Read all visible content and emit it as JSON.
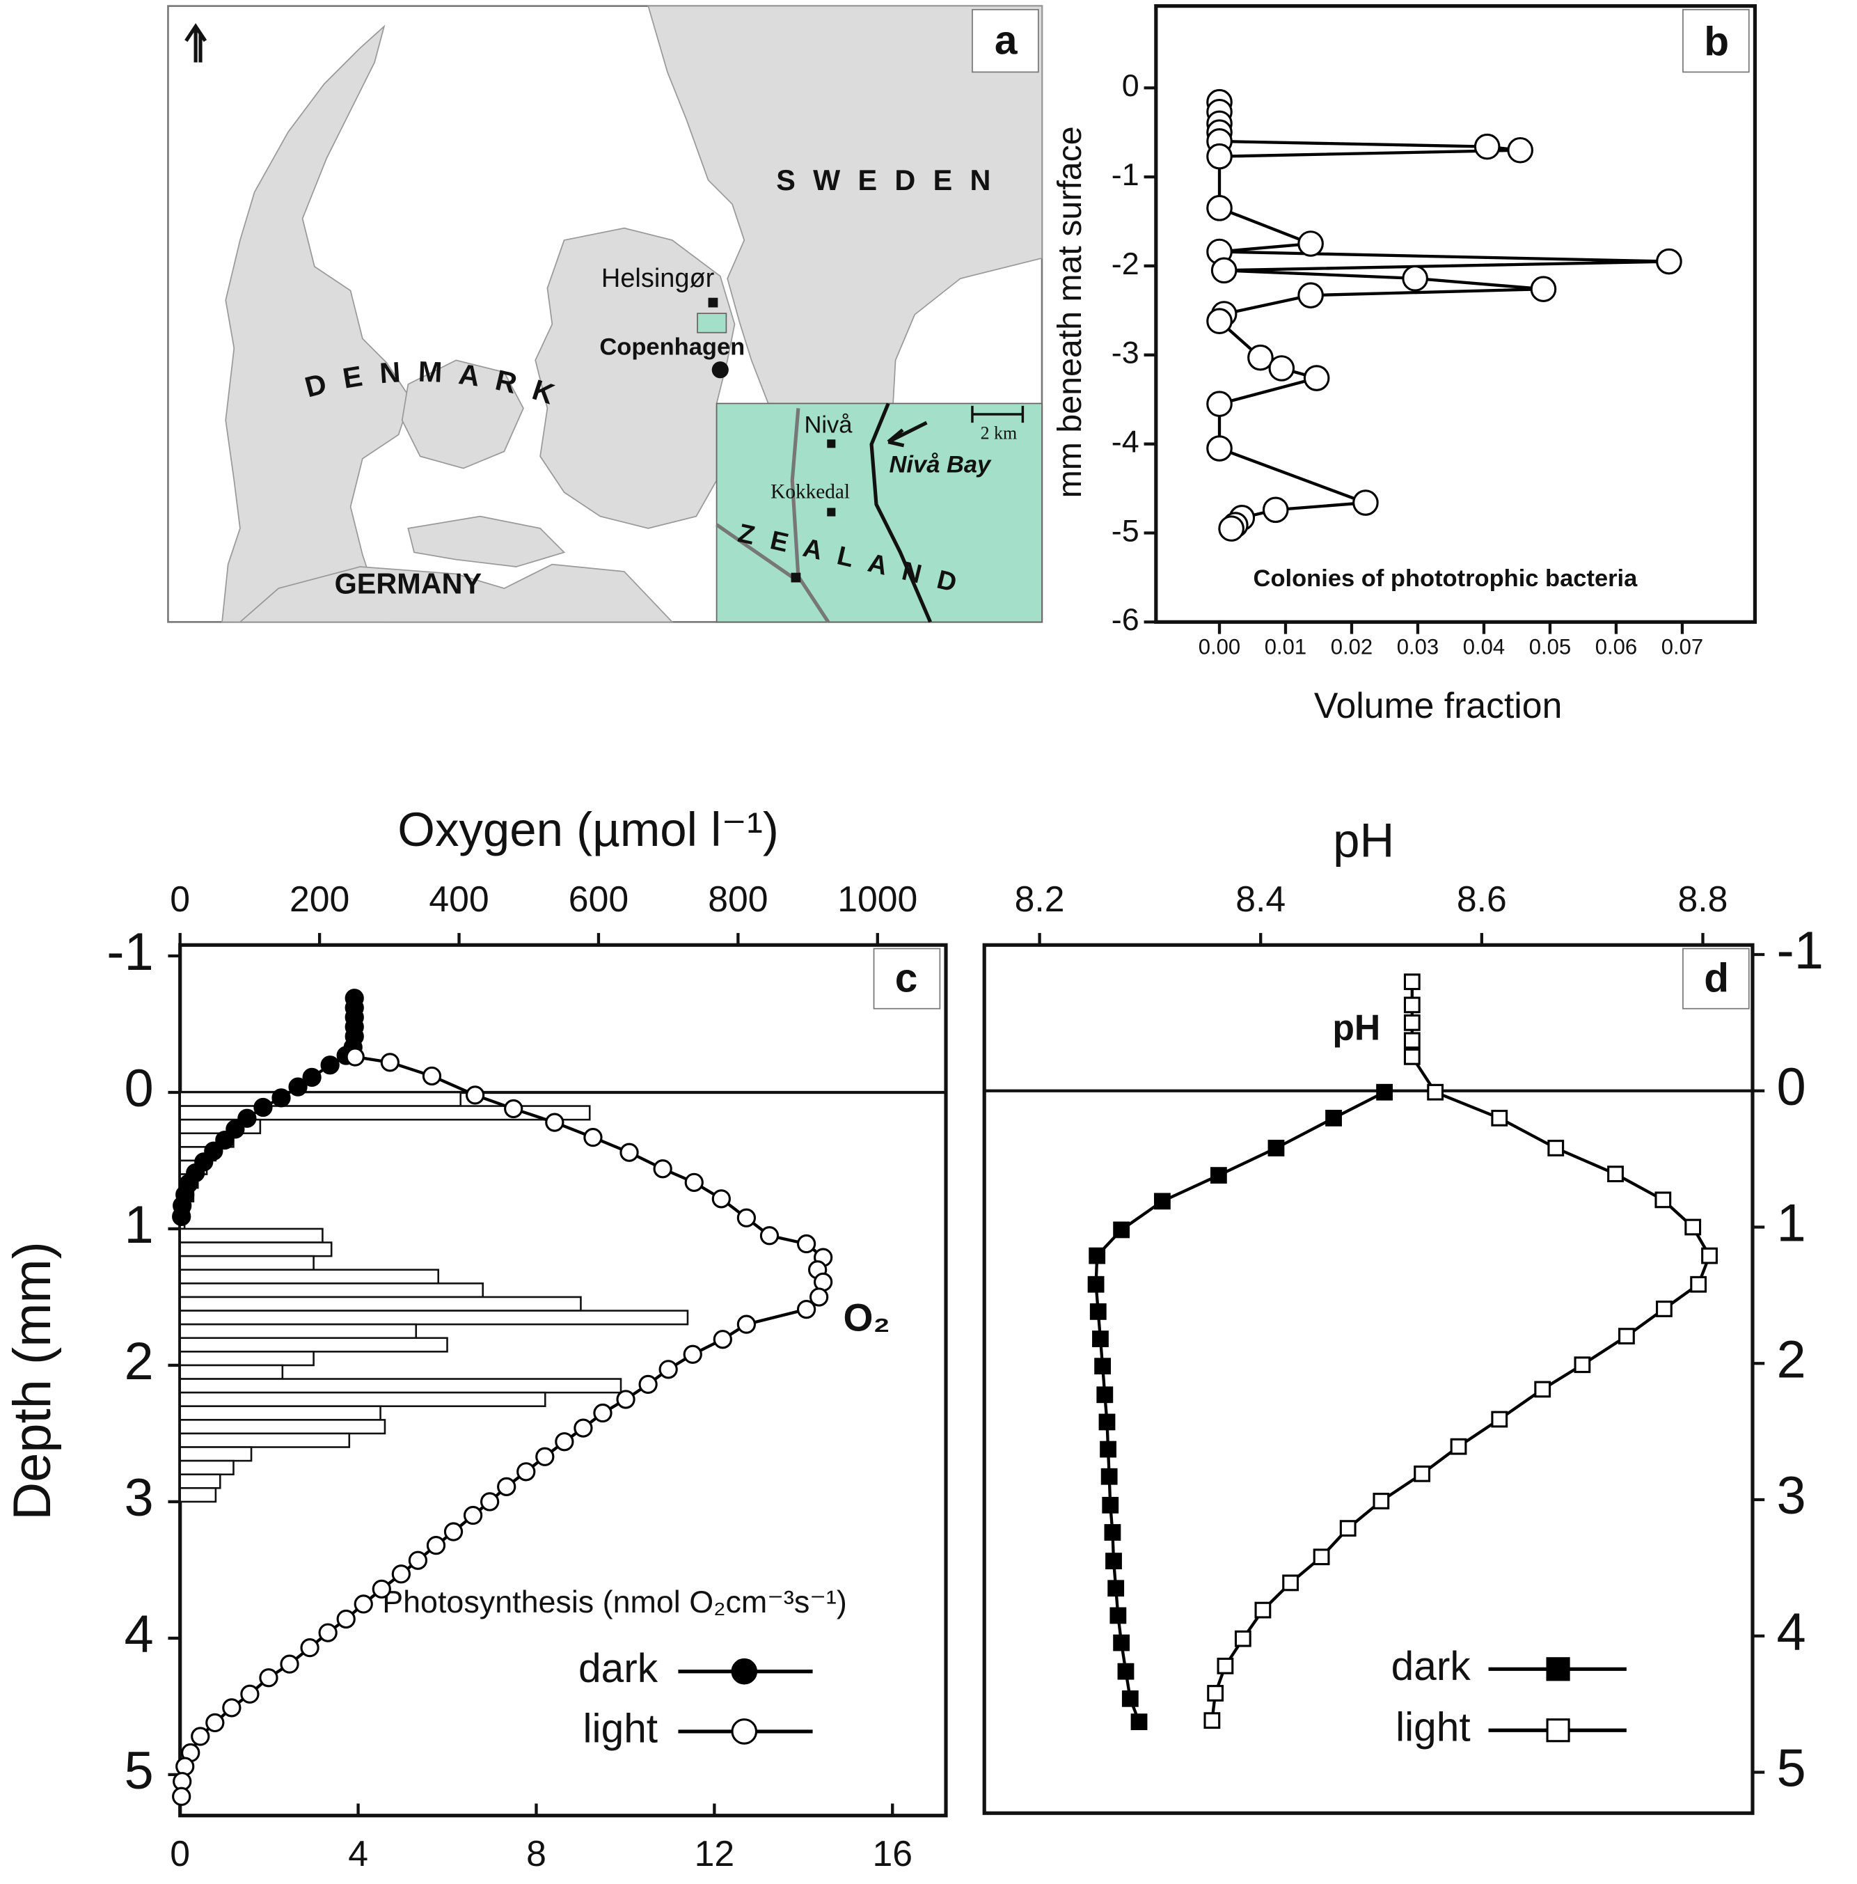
{
  "map": {
    "panel_label": "a",
    "labels": {
      "sweden": "S W E D E N",
      "denmark": "D E N M A R K",
      "germany": "GERMANY",
      "zealand": "Z E A L A N D",
      "helsingor": "Helsingør",
      "copenhagen": "Copenhagen",
      "niva": "Nivå",
      "niva_bay": "Nivå Bay",
      "kokkedal": "Kokkedal",
      "scale": "2 km"
    }
  },
  "chart_data": [
    {
      "type": "line",
      "panel_label": "b",
      "xlabel": "Volume fraction",
      "ylabel": "mm beneath mat surface",
      "annotation": "Colonies of phototrophic bacteria",
      "xlim": [
        -0.0096,
        0.081
      ],
      "ylim": [
        -6,
        0.92
      ],
      "xticks": [
        {
          "value": 0,
          "label": "0.00"
        },
        0.01,
        0.02,
        0.03,
        0.04,
        0.05,
        0.06,
        0.07
      ],
      "yticks": [
        0,
        -1,
        -2,
        -3,
        -4,
        -5,
        -6
      ],
      "series": [
        {
          "color": "#000000",
          "marker": "circle",
          "fill": "#ffffff",
          "x": [
            0,
            0,
            0,
            0,
            0,
            0.0405,
            0.0455,
            0,
            0,
            0.0138,
            0,
            0.068,
            0.0007,
            0.0296,
            0.049,
            0.0138,
            0.0007,
            0,
            0.0062,
            0.0094,
            0.0147,
            0,
            0,
            0.0221,
            0.0085,
            0.0034,
            0.0024,
            0.0018
          ],
          "values": [
            -0.16,
            -0.27,
            -0.4,
            -0.5,
            -0.6,
            -0.66,
            -0.7,
            -0.77,
            -1.35,
            -1.75,
            -1.84,
            -1.95,
            -2.05,
            -2.14,
            -2.26,
            -2.33,
            -2.54,
            -2.62,
            -3.03,
            -3.15,
            -3.26,
            -3.55,
            -4.05,
            -4.66,
            -4.74,
            -4.83,
            -4.91,
            -4.95
          ]
        }
      ]
    },
    {
      "type": "line",
      "panel_label": "c",
      "xlabel": "Oxygen (µmol l⁻¹)",
      "x2label": "Photosynthesis (nmol O₂cm⁻³s⁻¹)",
      "ylabel": "Depth (mm)",
      "annotation": "O₂",
      "xlim": [
        0,
        1098
      ],
      "x2lim": [
        0,
        17.2
      ],
      "ylim": [
        -1.08,
        5.3
      ],
      "y_inverted": true,
      "xticks": [
        0,
        200,
        400,
        600,
        800,
        1000
      ],
      "x2ticks": [
        0,
        4,
        8,
        12,
        16
      ],
      "yticks": [
        -1,
        0,
        1,
        2,
        3,
        4,
        5
      ],
      "series": [
        {
          "name": "dark",
          "color": "#000000",
          "marker": "circle",
          "fill": "#000000",
          "x": [
            250,
            250,
            250,
            250,
            250,
            248,
            238,
            215,
            189,
            169,
            145,
            119,
            96,
            79,
            64,
            48,
            34,
            22,
            12,
            7,
            3,
            2
          ],
          "values": [
            -0.69,
            -0.62,
            -0.55,
            -0.48,
            -0.41,
            -0.33,
            -0.27,
            -0.2,
            -0.11,
            -0.04,
            0.04,
            0.11,
            0.19,
            0.27,
            0.35,
            0.43,
            0.51,
            0.59,
            0.67,
            0.75,
            0.83,
            0.91
          ]
        },
        {
          "name": "light",
          "color": "#000000",
          "marker": "circle",
          "fill": "#ffffff",
          "x": [
            251,
            301,
            361,
            423,
            478,
            537,
            592,
            644,
            692,
            737,
            776,
            812,
            845,
            898,
            922,
            914,
            922,
            916,
            898,
            812,
            778,
            735,
            700,
            671,
            639,
            606,
            578,
            551,
            523,
            496,
            468,
            444,
            420,
            392,
            367,
            341,
            317,
            289,
            263,
            238,
            212,
            186,
            157,
            127,
            100,
            74,
            50,
            29,
            15,
            7,
            3,
            2
          ],
          "values": [
            -0.26,
            -0.22,
            -0.12,
            0.02,
            0.12,
            0.22,
            0.33,
            0.44,
            0.56,
            0.66,
            0.78,
            0.92,
            1.05,
            1.11,
            1.21,
            1.3,
            1.39,
            1.5,
            1.59,
            1.7,
            1.81,
            1.92,
            2.03,
            2.14,
            2.25,
            2.35,
            2.46,
            2.56,
            2.67,
            2.78,
            2.89,
            3.0,
            3.1,
            3.22,
            3.32,
            3.43,
            3.53,
            3.64,
            3.75,
            3.86,
            3.96,
            4.07,
            4.19,
            4.29,
            4.41,
            4.51,
            4.62,
            4.72,
            4.84,
            4.94,
            5.05,
            5.16
          ]
        }
      ],
      "bars": {
        "axis": "x2",
        "color": "#ffffff",
        "bins": [
          0,
          0.1,
          0.2,
          0.3,
          0.4,
          0.5,
          0.6,
          0.7,
          0.8,
          0.9,
          1.0,
          1.1,
          1.2,
          1.3,
          1.4,
          1.5,
          1.6,
          1.7,
          1.8,
          1.9,
          2.0,
          2.1,
          2.2,
          2.3,
          2.4,
          2.5,
          2.6,
          2.7,
          2.8,
          2.9,
          3.0
        ],
        "values": [
          6.3,
          9.2,
          1.8,
          1.2,
          0.8,
          0.6,
          0.4,
          0.3,
          0.2,
          0.1,
          3.2,
          3.4,
          3.0,
          5.8,
          6.8,
          9.0,
          11.4,
          5.3,
          6.0,
          3.0,
          2.3,
          9.9,
          8.2,
          4.5,
          4.6,
          3.8,
          1.6,
          1.2,
          0.9,
          0.8
        ]
      }
    },
    {
      "type": "line",
      "panel_label": "d",
      "xlabel": "pH",
      "annotation": "pH",
      "xlim": [
        8.15,
        8.845
      ],
      "ylim": [
        -1.07,
        5.3
      ],
      "y_inverted": true,
      "xticks": [
        8.2,
        8.4,
        8.6,
        8.8
      ],
      "yticks": [
        -1,
        0,
        1,
        2,
        3,
        4,
        5
      ],
      "series": [
        {
          "name": "dark",
          "color": "#000000",
          "marker": "square",
          "fill": "#000000",
          "x": [
            8.512,
            8.466,
            8.414,
            8.362,
            8.311,
            8.274,
            8.252,
            8.251,
            8.253,
            8.255,
            8.257,
            8.259,
            8.261,
            8.262,
            8.263,
            8.264,
            8.266,
            8.267,
            8.269,
            8.271,
            8.274,
            8.278,
            8.282,
            8.29
          ],
          "values": [
            0.01,
            0.2,
            0.42,
            0.62,
            0.81,
            1.02,
            1.21,
            1.42,
            1.62,
            1.82,
            2.02,
            2.23,
            2.43,
            2.63,
            2.83,
            3.04,
            3.24,
            3.45,
            3.65,
            3.85,
            4.05,
            4.26,
            4.46,
            4.63
          ]
        },
        {
          "name": "light",
          "color": "#000000",
          "marker": "square",
          "fill": "#ffffff",
          "x": [
            8.537,
            8.537,
            8.537,
            8.537,
            8.537,
            8.558,
            8.616,
            8.667,
            8.721,
            8.764,
            8.791,
            8.806,
            8.796,
            8.765,
            8.731,
            8.691,
            8.655,
            8.616,
            8.579,
            8.546,
            8.509,
            8.479,
            8.455,
            8.427,
            8.402,
            8.384,
            8.368,
            8.359,
            8.356
          ],
          "values": [
            -0.8,
            -0.63,
            -0.5,
            -0.37,
            -0.25,
            0.01,
            0.2,
            0.42,
            0.61,
            0.8,
            1.0,
            1.21,
            1.42,
            1.6,
            1.8,
            2.01,
            2.19,
            2.41,
            2.61,
            2.81,
            3.01,
            3.21,
            3.42,
            3.61,
            3.81,
            4.02,
            4.22,
            4.42,
            4.62
          ]
        }
      ]
    }
  ]
}
